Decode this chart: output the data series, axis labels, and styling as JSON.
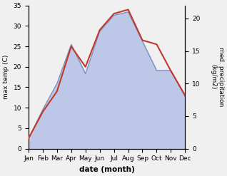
{
  "months": [
    "Jan",
    "Feb",
    "Mar",
    "Apr",
    "May",
    "Jun",
    "Jul",
    "Aug",
    "Sep",
    "Oct",
    "Nov",
    "Dec"
  ],
  "month_x": [
    1,
    2,
    3,
    4,
    5,
    6,
    7,
    8,
    9,
    10,
    11,
    12
  ],
  "temp_max": [
    2.5,
    9.0,
    14.0,
    25.0,
    20.0,
    29.0,
    33.0,
    34.0,
    26.5,
    25.5,
    19.0,
    13.0
  ],
  "precip": [
    1.5,
    6.0,
    10.0,
    16.0,
    11.5,
    18.0,
    20.5,
    21.0,
    16.5,
    12.0,
    12.0,
    8.0
  ],
  "temp_color": "#c0392b",
  "precip_fill_color": "#bdc8e8",
  "precip_line_color": "#8090c0",
  "temp_ylim": [
    0,
    35
  ],
  "precip_ylim": [
    0,
    22
  ],
  "temp_yticks": [
    0,
    5,
    10,
    15,
    20,
    25,
    30,
    35
  ],
  "precip_yticks": [
    0,
    5,
    10,
    15,
    20
  ],
  "xlabel": "date (month)",
  "ylabel_left": "max temp (C)",
  "ylabel_right": "med. precipitation\n(kg/m2)",
  "fig_width": 3.18,
  "fig_height": 2.47,
  "dpi": 100
}
